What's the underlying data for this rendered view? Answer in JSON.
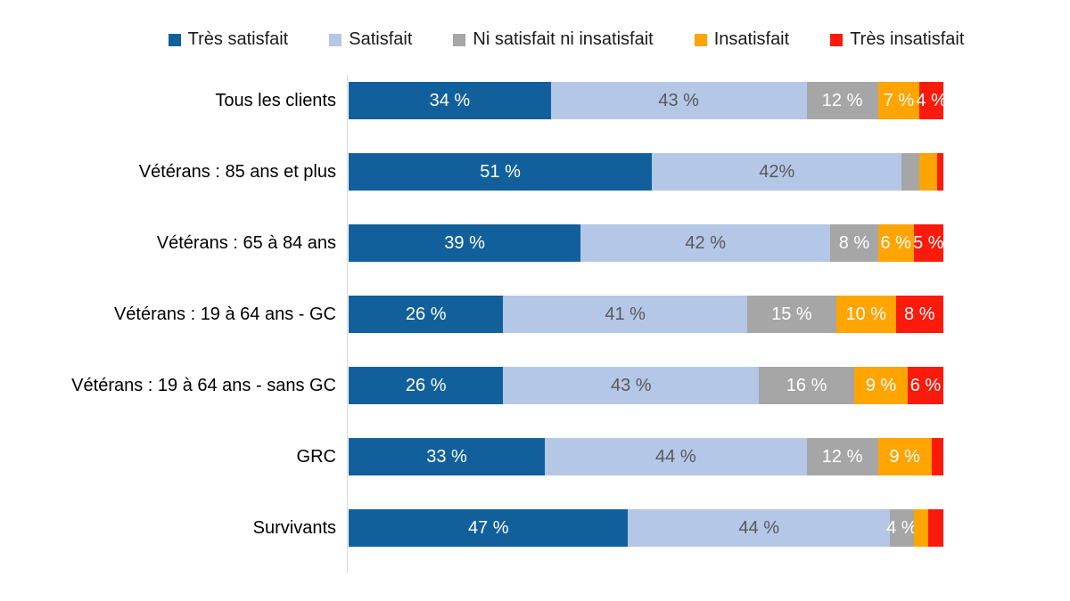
{
  "chart_data": {
    "type": "bar",
    "variant": "horizontal-stacked-100",
    "title": "",
    "xlabel": "",
    "ylabel": "",
    "xlim": [
      0,
      100
    ],
    "grid": false,
    "legend_position": "top",
    "axis_line_color": "#d9d9d9",
    "background_color": "#ffffff",
    "series": [
      {
        "name": "Très satisfait",
        "color": "#11609c",
        "label_color": "#ffffff"
      },
      {
        "name": "Satisfait",
        "color": "#b4c7e7",
        "label_color": "#595959"
      },
      {
        "name": "Ni satisfait ni insatisfait",
        "color": "#a6a6a6",
        "label_color": "#ffffff"
      },
      {
        "name": "Insatisfait",
        "color": "#ffa400",
        "label_color": "#ffffff"
      },
      {
        "name": "Très insatisfait",
        "color": "#fb1a0c",
        "label_color": "#ffffff"
      }
    ],
    "categories": [
      "Tous les clients",
      "Vétérans : 85 ans et plus",
      "Vétérans : 65 à 84 ans",
      "Vétérans : 19 à 64 ans - GC",
      "Vétérans : 19 à 64 ans - sans GC",
      "GRC",
      "Survivants"
    ],
    "rows": [
      {
        "category": "Tous les clients",
        "values": [
          34,
          43,
          12,
          7,
          4
        ],
        "labels": [
          "34 %",
          "43 %",
          "12 %",
          "7 %",
          "4 %"
        ]
      },
      {
        "category": "Vétérans : 85 ans et plus",
        "values": [
          51,
          42,
          3,
          3,
          1
        ],
        "labels": [
          "51 %",
          "42%",
          "",
          "",
          ""
        ]
      },
      {
        "category": "Vétérans : 65 à 84 ans",
        "values": [
          39,
          42,
          8,
          6,
          5
        ],
        "labels": [
          "39 %",
          "42 %",
          "8 %",
          "6 %",
          "5 %"
        ]
      },
      {
        "category": "Vétérans : 19 à 64 ans - GC",
        "values": [
          26,
          41,
          15,
          10,
          8
        ],
        "labels": [
          "26 %",
          "41 %",
          "15 %",
          "10 %",
          "8 %"
        ]
      },
      {
        "category": "Vétérans : 19 à 64 ans - sans GC",
        "values": [
          26,
          43,
          16,
          9,
          6
        ],
        "labels": [
          "26 %",
          "43 %",
          "16 %",
          "9 %",
          "6 %"
        ]
      },
      {
        "category": "GRC",
        "values": [
          33,
          44,
          12,
          9,
          2
        ],
        "labels": [
          "33 %",
          "44 %",
          "12 %",
          "9 %",
          ""
        ]
      },
      {
        "category": "Survivants",
        "values": [
          47,
          44,
          4,
          2.5,
          2.5
        ],
        "labels": [
          "47 %",
          "44 %",
          "4 %",
          "",
          ""
        ]
      }
    ]
  }
}
